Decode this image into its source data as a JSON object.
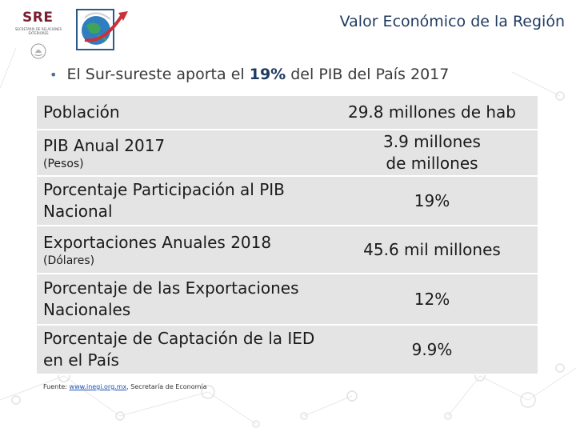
{
  "header": {
    "logo_sre": {
      "text": "SRE",
      "sub": "SECRETARÍA DE RELACIONES EXTERIORES"
    },
    "title": "Valor Económico de la Región"
  },
  "subtitle": {
    "prefix": "El Sur-sureste aporta el",
    "highlight": "19%",
    "suffix": "del PIB del País 2017"
  },
  "table": {
    "rows": [
      {
        "label": "Población",
        "note": "",
        "value": "29.8 millones de hab"
      },
      {
        "label": "PIB Anual 2017",
        "note": "(Pesos)",
        "value": "3.9 millones de millones"
      },
      {
        "label": "Porcentaje Participación al PIB Nacional",
        "note": "",
        "value": "19%"
      },
      {
        "label": "Exportaciones Anuales 2018",
        "note": "(Dólares)",
        "value": "45.6 mil millones"
      },
      {
        "label": "Porcentaje de las Exportaciones Nacionales",
        "note": "",
        "value": "12%"
      },
      {
        "label": "Porcentaje de Captación de la IED en el País",
        "note": "",
        "value": "9.9%"
      }
    ]
  },
  "source": {
    "prefix": "Fuente: ",
    "link": "www.inegi.org.mx",
    "suffix": ", Secretaría de Economía"
  },
  "colors": {
    "title": "#1f3a5f",
    "table_bg": "#e4e4e4",
    "sre_brand": "#7a1f33"
  }
}
